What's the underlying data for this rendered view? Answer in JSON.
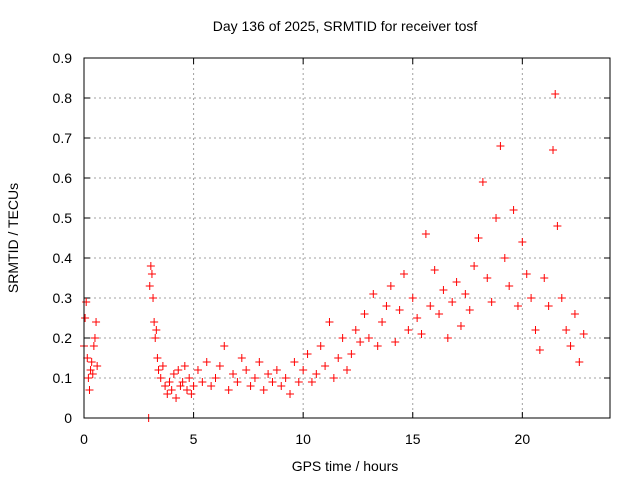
{
  "chart_data": {
    "type": "scatter",
    "title": "Day 136 of 2025, SRMTID for receiver tosf",
    "xlabel": "GPS time / hours",
    "ylabel": "SRMTID / TECUs",
    "xlim": [
      0,
      24
    ],
    "ylim": [
      0,
      0.9
    ],
    "xticks": [
      0,
      5,
      10,
      15,
      20
    ],
    "yticks": [
      0,
      0.1,
      0.2,
      0.3,
      0.4,
      0.5,
      0.6,
      0.7,
      0.8,
      0.9
    ],
    "xtick_labels": [
      "0",
      "5",
      "10",
      "15",
      "20"
    ],
    "ytick_labels": [
      "0",
      "0.1",
      "0.2",
      "0.3",
      "0.4",
      "0.5",
      "0.6",
      "0.7",
      "0.8",
      "0.9"
    ],
    "grid": true,
    "marker": "+",
    "color": "#ff0000",
    "series": [
      {
        "name": "SRMTID",
        "x": [
          0.0,
          0.05,
          0.1,
          0.15,
          0.2,
          0.25,
          0.3,
          0.35,
          0.4,
          0.45,
          0.5,
          0.55,
          0.6,
          2.95,
          3.0,
          3.05,
          3.1,
          3.15,
          3.2,
          3.25,
          3.3,
          3.35,
          3.4,
          3.5,
          3.6,
          3.7,
          3.8,
          3.9,
          4.0,
          4.1,
          4.2,
          4.3,
          4.4,
          4.5,
          4.6,
          4.7,
          4.8,
          4.9,
          5.0,
          5.2,
          5.4,
          5.6,
          5.8,
          6.0,
          6.2,
          6.4,
          6.6,
          6.8,
          7.0,
          7.2,
          7.4,
          7.6,
          7.8,
          8.0,
          8.2,
          8.4,
          8.6,
          8.8,
          9.0,
          9.2,
          9.4,
          9.6,
          9.8,
          10.0,
          10.2,
          10.4,
          10.6,
          10.8,
          11.0,
          11.2,
          11.4,
          11.6,
          11.8,
          12.0,
          12.2,
          12.4,
          12.6,
          12.8,
          13.0,
          13.2,
          13.4,
          13.6,
          13.8,
          14.0,
          14.2,
          14.4,
          14.6,
          14.8,
          15.0,
          15.2,
          15.4,
          15.6,
          15.8,
          16.0,
          16.2,
          16.4,
          16.6,
          16.8,
          17.0,
          17.2,
          17.4,
          17.6,
          17.8,
          18.0,
          18.2,
          18.4,
          18.6,
          18.8,
          19.0,
          19.2,
          19.4,
          19.6,
          19.8,
          20.0,
          20.2,
          20.4,
          20.6,
          20.8,
          21.0,
          21.2,
          21.4,
          21.5,
          21.6,
          21.8,
          22.0,
          22.2,
          22.4,
          22.6,
          22.8
        ],
        "y": [
          0.18,
          0.25,
          0.29,
          0.15,
          0.1,
          0.07,
          0.12,
          0.14,
          0.11,
          0.18,
          0.2,
          0.24,
          0.13,
          0.0,
          0.33,
          0.38,
          0.36,
          0.3,
          0.24,
          0.2,
          0.22,
          0.15,
          0.12,
          0.1,
          0.13,
          0.08,
          0.06,
          0.09,
          0.07,
          0.11,
          0.05,
          0.12,
          0.08,
          0.09,
          0.13,
          0.07,
          0.1,
          0.06,
          0.08,
          0.12,
          0.09,
          0.14,
          0.08,
          0.1,
          0.13,
          0.18,
          0.07,
          0.11,
          0.09,
          0.15,
          0.12,
          0.08,
          0.1,
          0.14,
          0.07,
          0.11,
          0.09,
          0.12,
          0.08,
          0.1,
          0.06,
          0.14,
          0.09,
          0.12,
          0.16,
          0.09,
          0.11,
          0.18,
          0.13,
          0.24,
          0.1,
          0.15,
          0.2,
          0.12,
          0.16,
          0.22,
          0.19,
          0.26,
          0.2,
          0.31,
          0.18,
          0.24,
          0.28,
          0.33,
          0.19,
          0.27,
          0.36,
          0.22,
          0.3,
          0.25,
          0.21,
          0.46,
          0.28,
          0.37,
          0.26,
          0.32,
          0.2,
          0.29,
          0.34,
          0.23,
          0.31,
          0.27,
          0.38,
          0.45,
          0.59,
          0.35,
          0.29,
          0.5,
          0.68,
          0.4,
          0.33,
          0.52,
          0.28,
          0.44,
          0.36,
          0.3,
          0.22,
          0.17,
          0.35,
          0.28,
          0.67,
          0.81,
          0.48,
          0.3,
          0.22,
          0.18,
          0.26,
          0.14,
          0.21
        ]
      }
    ]
  }
}
